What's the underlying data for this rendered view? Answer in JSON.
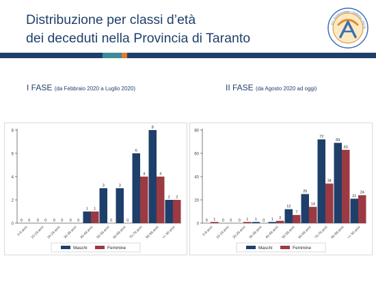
{
  "slide": {
    "title_line1": "Distribuzione per classi d’età",
    "title_line2": "dei deceduti nella Provincia di Taranto",
    "phase1_title": "I FASE",
    "phase1_sub": "(da Febbraio 2020 a Luglio 2020)",
    "phase2_title": "II FASE",
    "phase2_sub": "(da Agosto 2020 ad oggi)",
    "logo_text": "S.C. Epidemiologia • Statistica • Asl Taranto",
    "colors": {
      "title": "#1f3f6b",
      "bar_navy": "#1f3f6b",
      "bar_teal": "#3e8a9a",
      "bar_orange": "#e07b2c"
    }
  },
  "chart_data": [
    {
      "type": "bar",
      "categories": [
        "0-9 anni",
        "10-19 anni",
        "20-29 anni",
        "30-39 anni",
        "40-49 anni",
        "50-59 anni",
        "60-69 anni",
        "70-79 anni",
        "80-89 anni",
        ">= 90 anni"
      ],
      "series": [
        {
          "name": "Maschi",
          "color": "#1f3f6b",
          "values": [
            0,
            0,
            0,
            0,
            1,
            3,
            3,
            6,
            8,
            2
          ]
        },
        {
          "name": "Femmine",
          "color": "#9b3a42",
          "values": [
            0,
            0,
            0,
            0,
            1,
            0,
            0,
            4,
            4,
            2
          ]
        }
      ],
      "ylim": [
        0,
        8
      ],
      "yticks": [
        0,
        2,
        4,
        6,
        8
      ],
      "grid": false,
      "legend": "bottom"
    },
    {
      "type": "bar",
      "categories": [
        "0-9 anni",
        "10-19 anni",
        "20-29 anni",
        "30-39 anni",
        "40-49 anni",
        "50-59 anni",
        "60-69 anni",
        "70-79 anni",
        "80-89 anni",
        ">= 90 anni"
      ],
      "series": [
        {
          "name": "Maschi",
          "color": "#1f3f6b",
          "values": [
            0,
            0,
            0,
            1,
            1,
            12,
            25,
            72,
            69,
            21
          ]
        },
        {
          "name": "Femmine",
          "color": "#9b3a42",
          "values": [
            1,
            0,
            1,
            0,
            2,
            7,
            14,
            34,
            63,
            24
          ]
        }
      ],
      "ylim": [
        0,
        80
      ],
      "yticks": [
        0,
        20,
        40,
        60,
        80
      ],
      "grid": false,
      "legend": "bottom"
    }
  ]
}
